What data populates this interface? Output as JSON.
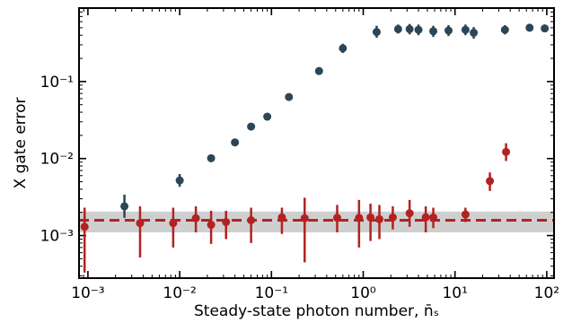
{
  "chart_data": {
    "type": "scatter",
    "xscale": "log",
    "yscale": "log",
    "xlim": [
      0.0008,
      120
    ],
    "ylim": [
      0.00028,
      0.9
    ],
    "xlabel": "Steady-state photon number, n̄ₛ",
    "ylabel": "X gate error",
    "x_ticks": [
      {
        "value": 0.001,
        "label": "10⁻³"
      },
      {
        "value": 0.01,
        "label": "10⁻²"
      },
      {
        "value": 0.1,
        "label": "10⁻¹"
      },
      {
        "value": 1,
        "label": "10⁰"
      },
      {
        "value": 10,
        "label": "10¹"
      },
      {
        "value": 100,
        "label": "10²"
      }
    ],
    "y_ticks": [
      {
        "value": 0.001,
        "label": "10⁻³"
      },
      {
        "value": 0.01,
        "label": "10⁻²"
      },
      {
        "value": 0.1,
        "label": "10⁻¹"
      }
    ],
    "band": {
      "center": 0.00158,
      "low": 0.0011,
      "high": 0.00205,
      "color": "#cfcfcf",
      "line_color": "#b22222"
    },
    "series": [
      {
        "color": "#2c4657",
        "points": [
          {
            "x": 0.0025,
            "y": 0.0024,
            "lo": 0.0017,
            "hi": 0.0034
          },
          {
            "x": 0.01,
            "y": 0.0052,
            "lo": 0.0043,
            "hi": 0.0063
          },
          {
            "x": 0.022,
            "y": 0.0101,
            "lo": 0.0092,
            "hi": 0.011
          },
          {
            "x": 0.04,
            "y": 0.0162,
            "lo": 0.0152,
            "hi": 0.0172
          },
          {
            "x": 0.06,
            "y": 0.026,
            "lo": 0.0245,
            "hi": 0.0276
          },
          {
            "x": 0.09,
            "y": 0.035,
            "lo": 0.033,
            "hi": 0.037
          },
          {
            "x": 0.155,
            "y": 0.063,
            "lo": 0.06,
            "hi": 0.066
          },
          {
            "x": 0.33,
            "y": 0.137,
            "lo": 0.128,
            "hi": 0.146
          },
          {
            "x": 0.6,
            "y": 0.27,
            "lo": 0.235,
            "hi": 0.31
          },
          {
            "x": 1.4,
            "y": 0.44,
            "lo": 0.37,
            "hi": 0.53
          },
          {
            "x": 2.4,
            "y": 0.48,
            "lo": 0.42,
            "hi": 0.55
          },
          {
            "x": 3.2,
            "y": 0.48,
            "lo": 0.41,
            "hi": 0.56
          },
          {
            "x": 4.0,
            "y": 0.47,
            "lo": 0.4,
            "hi": 0.55
          },
          {
            "x": 5.8,
            "y": 0.45,
            "lo": 0.38,
            "hi": 0.53
          },
          {
            "x": 8.5,
            "y": 0.46,
            "lo": 0.39,
            "hi": 0.54
          },
          {
            "x": 13,
            "y": 0.47,
            "lo": 0.4,
            "hi": 0.55
          },
          {
            "x": 16,
            "y": 0.43,
            "lo": 0.36,
            "hi": 0.51
          },
          {
            "x": 35,
            "y": 0.47,
            "lo": 0.41,
            "hi": 0.54
          },
          {
            "x": 65,
            "y": 0.5,
            "lo": 0.45,
            "hi": 0.56
          },
          {
            "x": 95,
            "y": 0.49,
            "lo": 0.46,
            "hi": 0.52
          }
        ]
      },
      {
        "color": "#b22222",
        "points": [
          {
            "x": 0.00092,
            "y": 0.0013,
            "lo": 0.00033,
            "hi": 0.0023
          },
          {
            "x": 0.0037,
            "y": 0.00145,
            "lo": 0.00052,
            "hi": 0.0024
          },
          {
            "x": 0.0085,
            "y": 0.00145,
            "lo": 0.0007,
            "hi": 0.0023
          },
          {
            "x": 0.015,
            "y": 0.00168,
            "lo": 0.0011,
            "hi": 0.0024
          },
          {
            "x": 0.022,
            "y": 0.00138,
            "lo": 0.00078,
            "hi": 0.0021
          },
          {
            "x": 0.032,
            "y": 0.0015,
            "lo": 0.0009,
            "hi": 0.0021
          },
          {
            "x": 0.06,
            "y": 0.00158,
            "lo": 0.0008,
            "hi": 0.0023
          },
          {
            "x": 0.13,
            "y": 0.00172,
            "lo": 0.00105,
            "hi": 0.0023
          },
          {
            "x": 0.23,
            "y": 0.00168,
            "lo": 0.00045,
            "hi": 0.0031
          },
          {
            "x": 0.52,
            "y": 0.0017,
            "lo": 0.0011,
            "hi": 0.0025
          },
          {
            "x": 0.9,
            "y": 0.0017,
            "lo": 0.0007,
            "hi": 0.0029
          },
          {
            "x": 1.2,
            "y": 0.00172,
            "lo": 0.00085,
            "hi": 0.0026
          },
          {
            "x": 1.5,
            "y": 0.00163,
            "lo": 0.0009,
            "hi": 0.0025
          },
          {
            "x": 2.1,
            "y": 0.00172,
            "lo": 0.0012,
            "hi": 0.0024
          },
          {
            "x": 3.2,
            "y": 0.00195,
            "lo": 0.0013,
            "hi": 0.0029
          },
          {
            "x": 4.8,
            "y": 0.00173,
            "lo": 0.0011,
            "hi": 0.0024
          },
          {
            "x": 5.8,
            "y": 0.00172,
            "lo": 0.00125,
            "hi": 0.0023
          },
          {
            "x": 13,
            "y": 0.00188,
            "lo": 0.0015,
            "hi": 0.0023
          },
          {
            "x": 24,
            "y": 0.0051,
            "lo": 0.0038,
            "hi": 0.0066
          },
          {
            "x": 36,
            "y": 0.0122,
            "lo": 0.0093,
            "hi": 0.0158
          }
        ]
      }
    ]
  }
}
